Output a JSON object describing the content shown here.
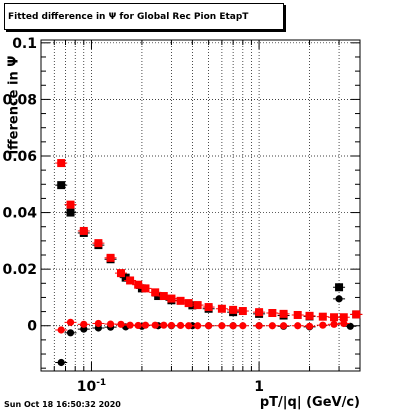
{
  "title": "Fitted difference in  Ψ  for Global Rec Pion EtapT",
  "datestamp": "Sun Oct 18 16:50:32 2020",
  "chart_data": {
    "type": "scatter",
    "title": "Fitted difference in  Ψ  for Global Rec Pion EtapT",
    "xlabel": "pT/|q| (GeV/c)",
    "ylabel": "ifference in  Ψ",
    "xscale": "log",
    "xlim": [
      0.05,
      4.0
    ],
    "ylim": [
      -0.016,
      0.101
    ],
    "grid": true,
    "colors": {
      "black": "#000000",
      "red": "#ff0000"
    },
    "y_ticks": [
      {
        "value": 0,
        "label": "0"
      },
      {
        "value": 0.02,
        "label": "0.02"
      },
      {
        "value": 0.04,
        "label": "0.04"
      },
      {
        "value": 0.06,
        "label": "0.06"
      },
      {
        "value": 0.08,
        "label": "0.08"
      },
      {
        "value": 0.1,
        "label": "0.1"
      }
    ],
    "x_ticks": [
      {
        "value": 0.1,
        "base": "10",
        "exp": "-1"
      },
      {
        "value": 1,
        "base": "1",
        "exp": ""
      }
    ],
    "series": [
      {
        "color": "black",
        "marker": "square",
        "x": [
          0.066,
          0.075,
          0.09,
          0.11,
          0.13,
          0.16,
          0.2,
          0.25,
          0.3,
          0.4,
          0.5,
          0.7,
          1.0,
          1.4,
          2.0,
          3.0,
          3.8
        ],
        "y": [
          0.0497,
          0.04,
          0.0328,
          0.0285,
          0.0235,
          0.017,
          0.0132,
          0.0105,
          0.009,
          0.0072,
          0.006,
          0.0048,
          0.0042,
          0.0036,
          0.0033,
          0.0136,
          0.004
        ]
      },
      {
        "color": "red",
        "marker": "square",
        "x": [
          0.066,
          0.075,
          0.09,
          0.11,
          0.13,
          0.15,
          0.17,
          0.19,
          0.21,
          0.24,
          0.27,
          0.3,
          0.34,
          0.38,
          0.43,
          0.5,
          0.6,
          0.7,
          0.8,
          1.0,
          1.2,
          1.4,
          1.7,
          2.0,
          2.4,
          2.8,
          3.2,
          3.8
        ],
        "y": [
          0.0575,
          0.0428,
          0.0335,
          0.0292,
          0.024,
          0.0186,
          0.016,
          0.0145,
          0.0132,
          0.0118,
          0.0105,
          0.0096,
          0.0088,
          0.008,
          0.0073,
          0.0066,
          0.006,
          0.0056,
          0.0052,
          0.0048,
          0.0045,
          0.0042,
          0.0038,
          0.0035,
          0.0032,
          0.003,
          0.003,
          0.004
        ]
      },
      {
        "color": "black",
        "marker": "circle",
        "x": [
          0.066,
          0.075,
          0.09,
          0.11,
          0.13,
          0.16,
          0.2,
          0.25,
          0.3,
          0.4,
          0.5,
          0.7,
          1.0,
          1.4,
          2.0,
          3.0,
          3.5
        ],
        "y": [
          -0.013,
          -0.0025,
          -0.0012,
          -0.0008,
          -0.0005,
          -0.0004,
          -0.0002,
          0.0,
          0.0,
          0.0,
          0.0,
          0.0,
          0.0,
          -0.0002,
          -0.0004,
          0.0095,
          -0.0002
        ]
      },
      {
        "color": "red",
        "marker": "circle",
        "x": [
          0.066,
          0.075,
          0.09,
          0.11,
          0.13,
          0.15,
          0.17,
          0.19,
          0.21,
          0.24,
          0.27,
          0.3,
          0.34,
          0.38,
          0.43,
          0.5,
          0.6,
          0.7,
          0.8,
          1.0,
          1.2,
          1.4,
          1.7,
          2.0,
          2.4,
          2.8,
          3.2,
          3.8
        ],
        "y": [
          -0.0015,
          0.0012,
          0.0005,
          0.0008,
          0.0006,
          0.0005,
          0.0002,
          0.0001,
          0.0002,
          0.0002,
          0.0002,
          0.0001,
          0.0001,
          0.0,
          0.0,
          0.0,
          0.0,
          0.0,
          0.0,
          0.0,
          0.0,
          0.0,
          0.0,
          -0.0002,
          0.0002,
          0.0005,
          0.0008,
          0.004
        ]
      }
    ]
  }
}
